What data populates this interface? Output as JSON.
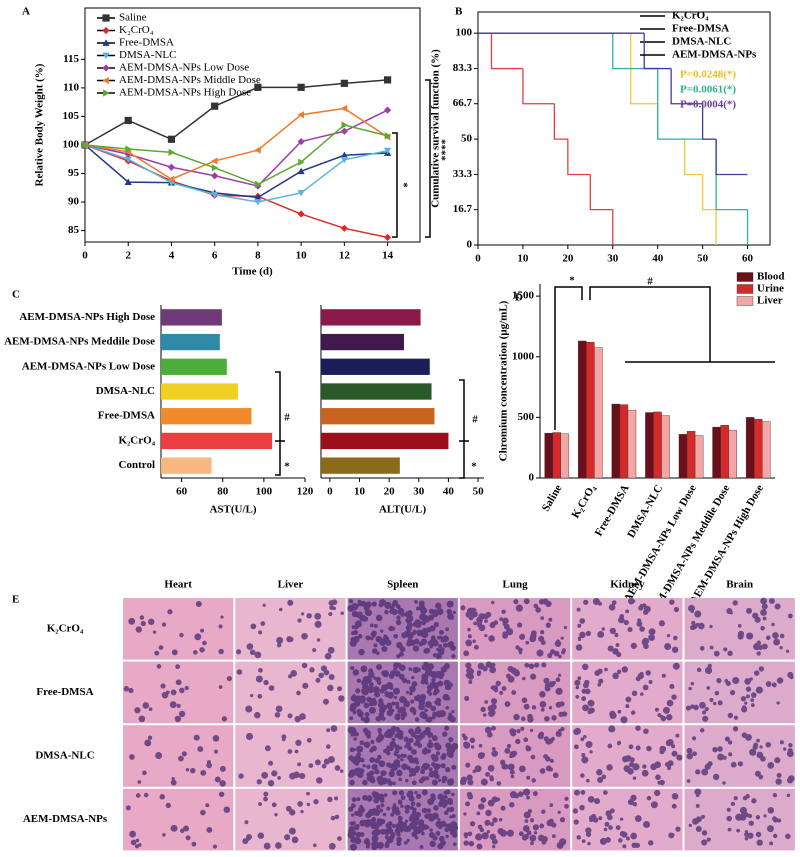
{
  "chart_data": [
    {
      "type": "line",
      "label": "A",
      "xlabel": "Time (d)",
      "ylabel": "Relative Body Weight (%)",
      "x": [
        0,
        2,
        4,
        6,
        8,
        10,
        12,
        14
      ],
      "xlim": [
        0,
        15.5
      ],
      "xticks": [
        0,
        2,
        4,
        6,
        8,
        10,
        12,
        14
      ],
      "ylim": [
        83,
        124
      ],
      "yticks": [
        85,
        90,
        95,
        100,
        105,
        110,
        115
      ],
      "legend": "upper left",
      "series": [
        {
          "name": "Saline",
          "color": "#333333",
          "marker": "square",
          "values": [
            100,
            104.3,
            101,
            106.8,
            110.1,
            110.1,
            110.8,
            111.4
          ]
        },
        {
          "name": "K₂CrO₄",
          "color": "#e0282a",
          "marker": "diamond",
          "values": [
            100,
            97.2,
            93.7,
            91.2,
            91.0,
            87.9,
            85.4,
            83.8
          ]
        },
        {
          "name": "Free-DMSA",
          "color": "#1f3a8a",
          "marker": "triangle",
          "values": [
            100,
            93.5,
            93.4,
            91.6,
            90.8,
            95.4,
            98.2,
            98.6
          ]
        },
        {
          "name": "DMSA-NLC",
          "color": "#5ab4e0",
          "marker": "triangle-down",
          "values": [
            100,
            97.5,
            93.4,
            91.3,
            90.0,
            91.6,
            97.4,
            99.0
          ]
        },
        {
          "name": "AEM-DMSA-NPs Low Dose",
          "color": "#9b3fa8",
          "marker": "diamond",
          "values": [
            100,
            98.4,
            96.1,
            94.6,
            92.8,
            100.6,
            102.4,
            106.1
          ]
        },
        {
          "name": "AEM-DMSA-NPs Middle Dose",
          "color": "#f07a30",
          "marker": "triangle-left",
          "values": [
            100,
            98.8,
            94.0,
            97.2,
            99.1,
            105.3,
            106.4,
            101.4
          ]
        },
        {
          "name": "AEM-DMSA-NPs High Dose",
          "color": "#5aaa30",
          "marker": "triangle-right",
          "values": [
            100,
            99.3,
            98.7,
            96.0,
            93.1,
            97.0,
            103.5,
            101.6
          ]
        }
      ],
      "annotations": [
        "*",
        "****"
      ]
    },
    {
      "type": "step",
      "label": "B",
      "ylabel": "Cumulative survival function (%)",
      "xlim": [
        0,
        65
      ],
      "xticks": [
        0,
        10,
        20,
        30,
        40,
        50,
        60
      ],
      "ylim": [
        0,
        110
      ],
      "yticks": [
        0,
        16.7,
        33.3,
        50,
        66.7,
        83.3,
        100
      ],
      "legend": "upper right",
      "series": [
        {
          "name": "K₂CrO₄",
          "color": "#e04040",
          "x": [
            0,
            3,
            10,
            17,
            20,
            25,
            30
          ],
          "values": [
            100,
            83.3,
            66.7,
            50,
            33.3,
            16.7,
            0
          ]
        },
        {
          "name": "Free-DMSA",
          "color": "#f0c830",
          "x": [
            0,
            34,
            40,
            46,
            50,
            53
          ],
          "values": [
            100,
            66.7,
            50,
            33.3,
            16.7,
            0
          ]
        },
        {
          "name": "DMSA-NLC",
          "color": "#30b0b0",
          "x": [
            0,
            30,
            40,
            53,
            60
          ],
          "values": [
            100,
            83.3,
            50,
            16.7,
            0
          ]
        },
        {
          "name": "AEM-DMSA-NPs",
          "color": "#4a3a9a",
          "x": [
            0,
            37,
            43,
            50,
            53,
            60
          ],
          "values": [
            100,
            83.3,
            66.7,
            50,
            33.3,
            33.3
          ]
        }
      ],
      "annotations": [
        "P=0.0248(*)",
        "P=0.0061(*)",
        "P=0.0004(*)"
      ],
      "annotation_colors": [
        "#e8c020",
        "#30b090",
        "#6a3a9a"
      ]
    },
    {
      "type": "hbar",
      "label": "C",
      "xlabel": "AST(U/L)",
      "xlim": [
        50,
        120
      ],
      "xticks": [
        60,
        80,
        100,
        120
      ],
      "categories": [
        "AEM-DMSA-NPs High Dose",
        "AEM-DMSA-NPs Meddile Dose",
        "AEM-DMSA-NPs Low Dose",
        "DMSA-NLC",
        "Free-DMSA",
        "K₂CrO₄",
        "Control"
      ],
      "values": [
        79.6,
        78.6,
        82,
        87.4,
        94,
        104,
        74.6
      ],
      "colors": [
        "#6e3a7a",
        "#2e8aa8",
        "#4cad3a",
        "#f0d020",
        "#f08a2a",
        "#e84040",
        "#f8b880"
      ],
      "annotations": [
        "#",
        "*"
      ]
    },
    {
      "type": "hbar",
      "xlabel": "ALT(U/L)",
      "xlim": [
        -3,
        52
      ],
      "xticks": [
        0,
        10,
        20,
        30,
        40,
        50
      ],
      "values": [
        30.6,
        25,
        33.7,
        34.3,
        35.3,
        40,
        23.6
      ],
      "colors": [
        "#8b1a4a",
        "#3d1a4a",
        "#1a1f5a",
        "#2a5a2a",
        "#c86420",
        "#9a0f1a",
        "#8b6a1a"
      ],
      "annotations": [
        "#",
        "*"
      ]
    },
    {
      "type": "groupbar",
      "label": "D",
      "ylabel": "Chromium concentration (μg/mL)",
      "ylim": [
        0,
        1600
      ],
      "yticks": [
        0,
        500,
        1000,
        1500
      ],
      "legend": "upper right",
      "categories": [
        "Saline",
        "K₂CrO₄",
        "Free-DMSA",
        "DMSA-NLC",
        "AEM-DMSA-NPs Low Dose",
        "AEM-DMSA-NPs Meddile Dose",
        "AEM-DMSA-NPs High Dose"
      ],
      "series": [
        {
          "name": "Blood",
          "color": "#6b0f1a",
          "values": [
            370,
            1130,
            610,
            540,
            360,
            420,
            500
          ]
        },
        {
          "name": "Urine",
          "color": "#d42a2a",
          "values": [
            375,
            1120,
            605,
            545,
            385,
            435,
            485
          ]
        },
        {
          "name": "Liver",
          "color": "#f4a6a6",
          "values": [
            365,
            1075,
            560,
            515,
            350,
            395,
            465
          ]
        }
      ],
      "annotations": [
        "*",
        "#"
      ]
    }
  ],
  "histology": {
    "label": "E",
    "columns": [
      "Heart",
      "Liver",
      "Spleen",
      "Lung",
      "Kidney",
      "Brain"
    ],
    "rows": [
      "K₂CrO₄",
      "Free-DMSA",
      "DMSA-NLC",
      "AEM-DMSA-NPs"
    ]
  }
}
